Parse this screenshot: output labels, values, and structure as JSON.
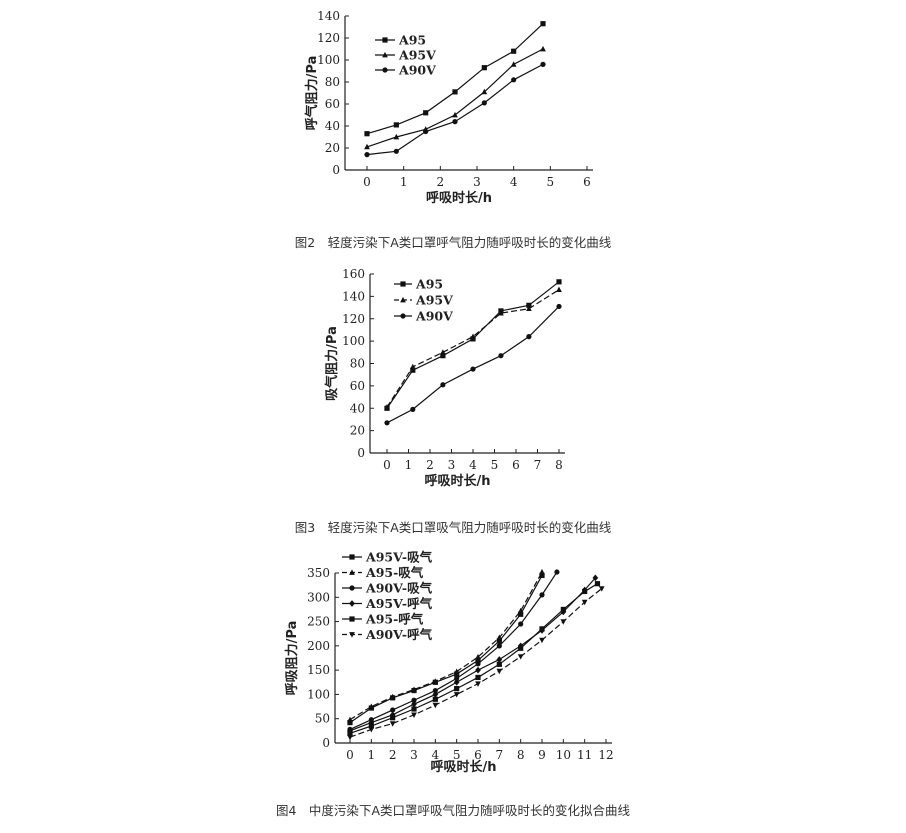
{
  "chart_data": [
    {
      "type": "line",
      "title": "",
      "caption": "图2　轻度污染下A类口罩呼气阻力随呼吸时长的变化曲线",
      "xlabel": "呼吸时长/h",
      "ylabel": "呼气阻力/Pa",
      "xlim": [
        0,
        6
      ],
      "ylim": [
        0,
        140
      ],
      "xticks": [
        0,
        1,
        2,
        3,
        4,
        5,
        6
      ],
      "yticks": [
        0,
        20,
        40,
        60,
        80,
        100,
        120,
        140
      ],
      "legend_position": "top-left",
      "series": [
        {
          "name": "A95",
          "marker": "square",
          "dash": "solid",
          "x": [
            0,
            0.8,
            1.6,
            2.4,
            3.2,
            4.0,
            4.8
          ],
          "y": [
            33,
            41,
            52,
            71,
            93,
            108,
            133
          ]
        },
        {
          "name": "A95V",
          "marker": "triangle",
          "dash": "solid",
          "x": [
            0,
            0.8,
            1.6,
            2.4,
            3.2,
            4.0,
            4.8
          ],
          "y": [
            21,
            30,
            37,
            50,
            71,
            96,
            110
          ]
        },
        {
          "name": "A90V",
          "marker": "circle",
          "dash": "solid",
          "x": [
            0,
            0.8,
            1.6,
            2.4,
            3.2,
            4.0,
            4.8
          ],
          "y": [
            14,
            17,
            35,
            44,
            61,
            82,
            96
          ]
        }
      ]
    },
    {
      "type": "line",
      "title": "",
      "caption": "图3　轻度污染下A类口罩吸气阻力随呼吸时长的变化曲线",
      "xlabel": "呼吸时长/h",
      "ylabel": "吸气阻力/Pa",
      "xlim": [
        0,
        8
      ],
      "ylim": [
        0,
        160
      ],
      "xticks": [
        0,
        1,
        2,
        3,
        4,
        5,
        6,
        7,
        8
      ],
      "yticks": [
        0,
        20,
        40,
        60,
        80,
        100,
        120,
        140,
        160
      ],
      "legend_position": "top-left",
      "series": [
        {
          "name": "A95",
          "marker": "square",
          "dash": "solid",
          "x": [
            0,
            1.2,
            2.6,
            4.0,
            5.3,
            6.6,
            8.0
          ],
          "y": [
            40,
            74,
            87,
            102,
            127,
            132,
            153
          ]
        },
        {
          "name": "A95V",
          "marker": "triangle",
          "dash": "dashed",
          "x": [
            0,
            1.2,
            2.6,
            4.0,
            5.3,
            6.6,
            8.0
          ],
          "y": [
            41,
            77,
            90,
            104,
            125,
            129,
            146
          ]
        },
        {
          "name": "A90V",
          "marker": "circle",
          "dash": "solid",
          "x": [
            0,
            1.2,
            2.6,
            4.0,
            5.3,
            6.6,
            8.0
          ],
          "y": [
            27,
            39,
            61,
            75,
            87,
            104,
            131
          ]
        }
      ]
    },
    {
      "type": "line",
      "title": "",
      "caption": "图4　中度污染下A类口罩呼吸气阻力随呼吸时长的变化拟合曲线",
      "xlabel": "呼吸时长/h",
      "ylabel": "呼吸阻力/Pa",
      "xlim": [
        0,
        12
      ],
      "ylim": [
        0,
        350
      ],
      "xticks": [
        0,
        1,
        2,
        3,
        4,
        5,
        6,
        7,
        8,
        9,
        10,
        11,
        12
      ],
      "yticks": [
        0,
        50,
        100,
        150,
        200,
        250,
        300,
        350
      ],
      "legend_position": "top-left",
      "series": [
        {
          "name": "A95V-吸气",
          "marker": "square",
          "dash": "solid",
          "x": [
            0,
            1,
            2,
            3,
            4,
            5,
            6,
            7,
            8,
            9
          ],
          "y": [
            42,
            72,
            93,
            108,
            125,
            142,
            170,
            210,
            265,
            345
          ]
        },
        {
          "name": "A95-吸气",
          "marker": "triangle",
          "dash": "dashed",
          "x": [
            0,
            1,
            2,
            3,
            4,
            5,
            6,
            7,
            8,
            9
          ],
          "y": [
            48,
            75,
            95,
            110,
            127,
            147,
            177,
            217,
            272,
            352
          ]
        },
        {
          "name": "A90V-吸气",
          "marker": "circle",
          "dash": "solid",
          "x": [
            0,
            1,
            2,
            3,
            4,
            5,
            6,
            7,
            8,
            9,
            9.7
          ],
          "y": [
            28,
            48,
            68,
            88,
            108,
            133,
            163,
            200,
            245,
            305,
            352
          ]
        },
        {
          "name": "A95V-呼气",
          "marker": "diamond",
          "dash": "solid",
          "x": [
            0,
            1,
            2,
            3,
            4,
            5,
            6,
            7,
            8,
            9,
            10,
            11,
            11.5
          ],
          "y": [
            25,
            42,
            58,
            80,
            100,
            125,
            150,
            172,
            200,
            232,
            270,
            315,
            340
          ]
        },
        {
          "name": "A95-呼气",
          "marker": "square",
          "dash": "solid",
          "x": [
            0,
            1,
            2,
            3,
            4,
            5,
            6,
            7,
            8,
            9,
            10,
            11,
            11.6
          ],
          "y": [
            20,
            35,
            52,
            70,
            90,
            112,
            135,
            162,
            195,
            235,
            275,
            312,
            328
          ]
        },
        {
          "name": "A90V-呼气",
          "marker": "triangle-down",
          "dash": "dashed",
          "x": [
            0,
            1,
            2,
            3,
            4,
            5,
            6,
            7,
            8,
            9,
            10,
            11,
            11.8
          ],
          "y": [
            12,
            28,
            40,
            58,
            78,
            100,
            122,
            148,
            178,
            212,
            250,
            290,
            318
          ]
        }
      ]
    }
  ]
}
